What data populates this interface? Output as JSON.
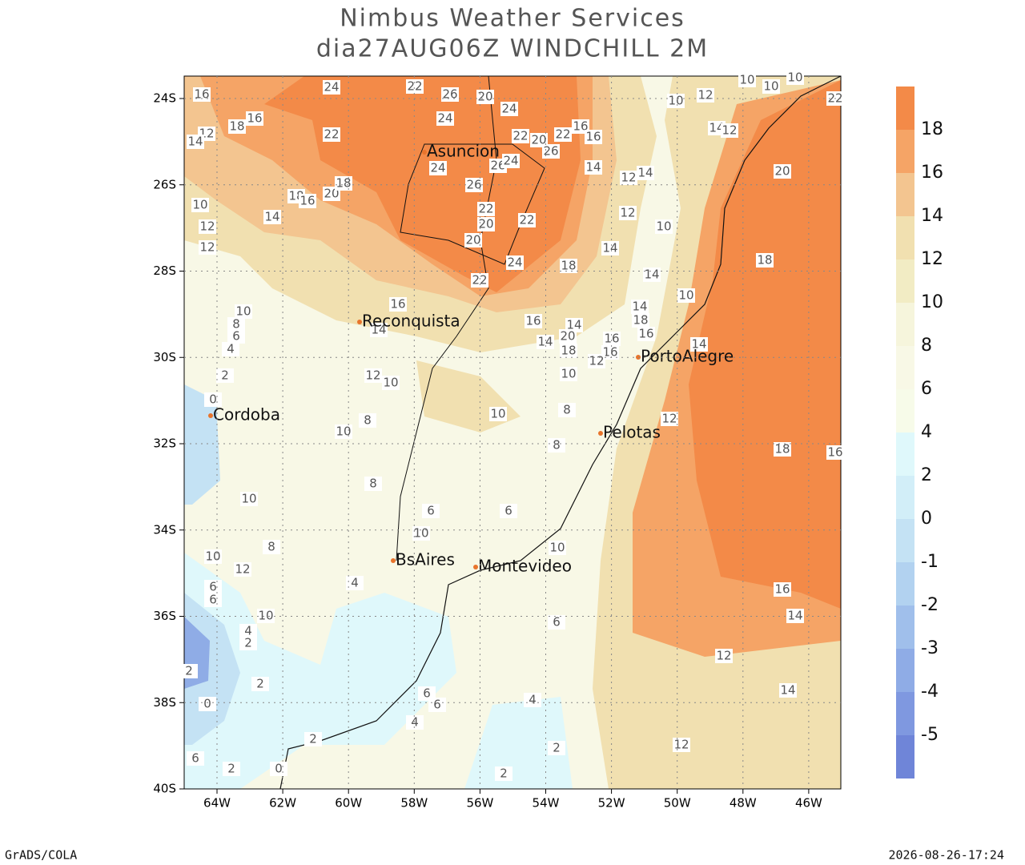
{
  "title": "Nimbus Weather Services",
  "subtitle": "dia27AUG06Z WINDCHILL 2M",
  "map": {
    "lat_ticks": [
      "24S",
      "26S",
      "28S",
      "30S",
      "32S",
      "34S",
      "36S",
      "38S",
      "40S"
    ],
    "lon_ticks": [
      "64W",
      "62W",
      "60W",
      "58W",
      "56W",
      "54W",
      "52W",
      "50W",
      "48W",
      "46W"
    ],
    "cities": [
      "Asuncion",
      "Reconquista",
      "Cordoba",
      "PortoAlegre",
      "Pelotas",
      "BsAires",
      "Montevideo"
    ],
    "contour_labels": [
      24,
      22,
      26,
      20,
      24,
      16,
      18,
      16,
      22,
      24,
      22,
      20,
      22,
      16,
      16,
      26,
      24,
      26,
      24,
      14,
      26,
      20,
      18,
      18,
      16,
      12,
      14,
      10,
      12,
      12,
      14,
      22,
      20,
      22,
      20,
      24,
      18,
      14,
      22,
      12,
      12,
      14,
      10,
      10,
      12,
      14,
      12,
      10,
      10,
      10,
      22,
      20,
      18,
      14,
      10,
      14,
      18,
      16,
      16,
      10,
      14,
      16,
      14,
      20,
      14,
      18,
      16,
      16,
      12,
      14,
      12,
      10,
      10,
      8,
      6,
      4,
      2,
      0,
      10,
      8,
      12,
      10,
      8,
      8,
      18,
      16,
      10,
      8,
      6,
      6,
      10,
      8,
      10,
      12,
      10,
      4,
      6,
      6,
      16,
      14,
      10,
      4,
      2,
      6,
      12,
      2,
      2,
      14,
      0,
      6,
      6,
      4,
      4,
      2,
      12,
      2,
      6,
      2,
      0,
      2
    ]
  },
  "colorbar": {
    "labels": [
      18,
      16,
      14,
      12,
      10,
      8,
      6,
      4,
      2,
      0,
      -1,
      -2,
      -3,
      -4,
      -5
    ],
    "colors": [
      "#f38a48",
      "#f5a466",
      "#f3c590",
      "#f1e0b0",
      "#f2ecc4",
      "#f6f5dc",
      "#f8f8e6",
      "#f7fbe9",
      "#dff8fb",
      "#d2eef8",
      "#c4e2f4",
      "#b2d2f0",
      "#a0bfeb",
      "#8facE6",
      "#7f98e0",
      "#6f85d8"
    ]
  },
  "footer": {
    "left": "GrADS/COLA",
    "right": "2026-08-26-17:24"
  }
}
